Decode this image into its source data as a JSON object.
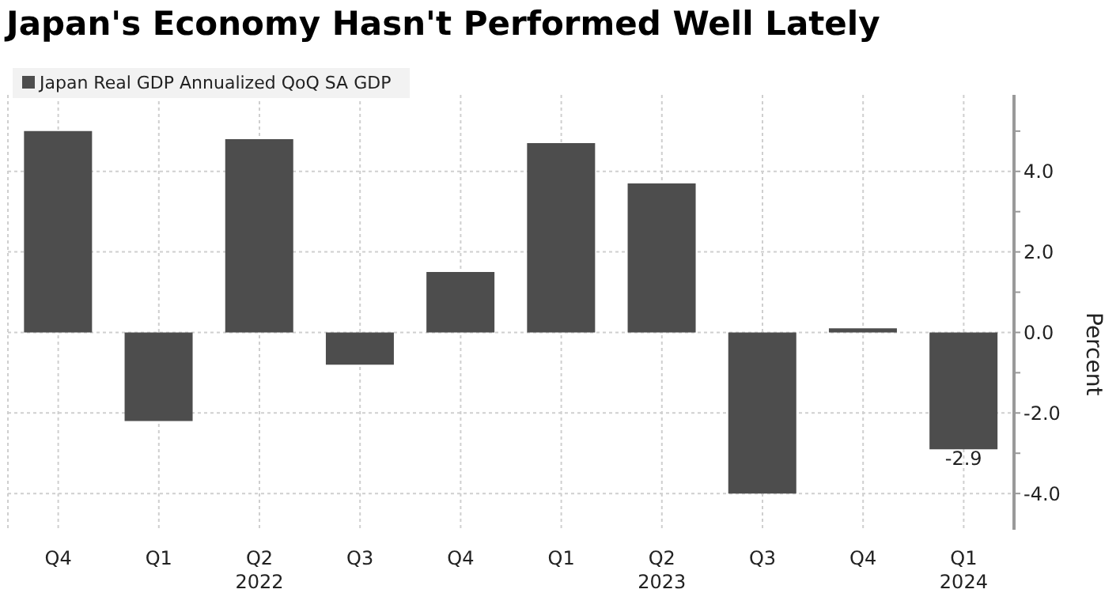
{
  "chart_data": {
    "type": "bar",
    "title": "Japan's Economy Hasn't Performed Well Lately",
    "ylabel": "Percent",
    "categories": [
      "Q4",
      "Q1",
      "Q2\n2022",
      "Q3",
      "Q4",
      "Q1",
      "Q2\n2023",
      "Q3",
      "Q4",
      "Q1\n2024"
    ],
    "series": [
      {
        "name": "Japan Real GDP Annualized QoQ SA GDP",
        "color": "#4d4d4d",
        "values": [
          5.0,
          -2.2,
          4.8,
          -0.8,
          1.5,
          4.7,
          3.7,
          -4.0,
          0.1,
          -2.9
        ],
        "value_labels": [
          null,
          null,
          null,
          null,
          null,
          null,
          null,
          null,
          null,
          "-2.9"
        ]
      }
    ],
    "ylim": [
      -4.9,
      5.9
    ],
    "yticks": [
      {
        "value": -4,
        "label": "-4.0"
      },
      {
        "value": -3,
        "label": null
      },
      {
        "value": -2,
        "label": "-2.0"
      },
      {
        "value": -1,
        "label": null
      },
      {
        "value": 0,
        "label": "0.0"
      },
      {
        "value": 1,
        "label": null
      },
      {
        "value": 2,
        "label": "2.0"
      },
      {
        "value": 3,
        "label": null
      },
      {
        "value": 4,
        "label": "4.0"
      },
      {
        "value": 5,
        "label": null
      }
    ],
    "grid": true,
    "legend": "top left"
  }
}
